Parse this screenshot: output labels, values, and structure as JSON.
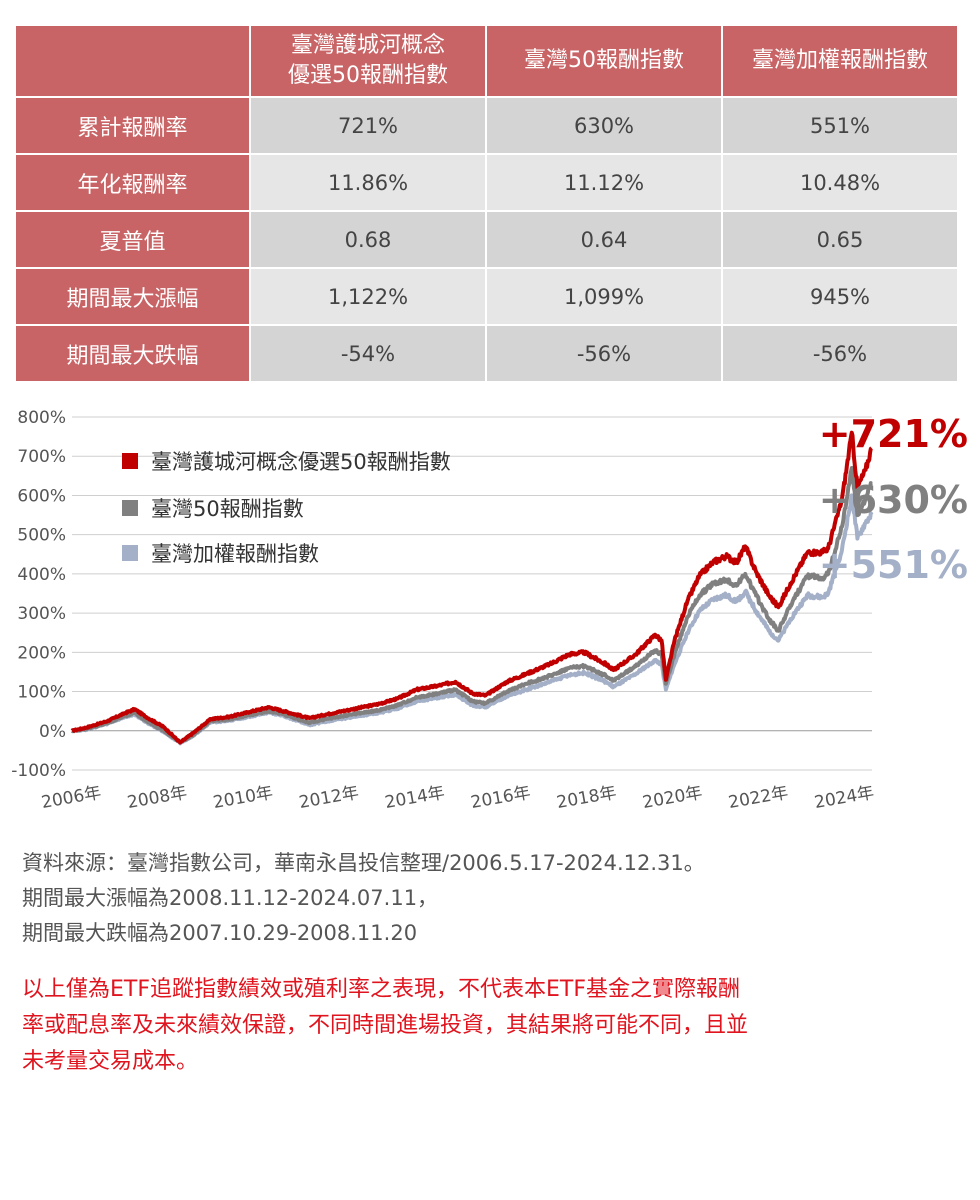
{
  "table": {
    "corner": "",
    "columns": [
      "臺灣護城河概念\n優選50報酬指數",
      "臺灣50報酬指數",
      "臺灣加權報酬指數"
    ],
    "rows": [
      {
        "label": "累計報酬率",
        "values": [
          "721%",
          "630%",
          "551%"
        ]
      },
      {
        "label": "年化報酬率",
        "values": [
          "11.86%",
          "11.12%",
          "10.48%"
        ]
      },
      {
        "label": "夏普值",
        "values": [
          "0.68",
          "0.64",
          "0.65"
        ]
      },
      {
        "label": "期間最大漲幅",
        "values": [
          "1,122%",
          "1,099%",
          "945%"
        ]
      },
      {
        "label": "期間最大跌幅",
        "values": [
          "-54%",
          "-56%",
          "-56%"
        ]
      }
    ]
  },
  "chart_data": {
    "type": "line",
    "title": "",
    "xlabel": "",
    "ylabel": "",
    "x_ticks": [
      "2006年",
      "2008年",
      "2010年",
      "2012年",
      "2014年",
      "2016年",
      "2018年",
      "2020年",
      "2022年",
      "2024年"
    ],
    "y_ticks": [
      "800%",
      "700%",
      "600%",
      "500%",
      "400%",
      "300%",
      "200%",
      "100%",
      "0%",
      "-100%"
    ],
    "ylim": [
      -100,
      800
    ],
    "xlim": [
      2006.37,
      2025.0
    ],
    "grid": true,
    "legend_position": "top-left",
    "series": [
      {
        "name": "臺灣護城河概念優選50報酬指數",
        "color": "#c00000",
        "end_label": "+721%",
        "points": [
          [
            2006.37,
            0
          ],
          [
            2006.7,
            8
          ],
          [
            2007.2,
            25
          ],
          [
            2007.6,
            45
          ],
          [
            2007.83,
            55
          ],
          [
            2008.1,
            35
          ],
          [
            2008.5,
            10
          ],
          [
            2008.89,
            -30
          ],
          [
            2009.2,
            -5
          ],
          [
            2009.6,
            30
          ],
          [
            2010.0,
            35
          ],
          [
            2010.5,
            48
          ],
          [
            2010.95,
            60
          ],
          [
            2011.3,
            50
          ],
          [
            2011.9,
            32
          ],
          [
            2012.3,
            42
          ],
          [
            2012.9,
            55
          ],
          [
            2013.5,
            68
          ],
          [
            2013.95,
            82
          ],
          [
            2014.4,
            105
          ],
          [
            2014.9,
            115
          ],
          [
            2015.3,
            125
          ],
          [
            2015.7,
            95
          ],
          [
            2016.0,
            90
          ],
          [
            2016.5,
            125
          ],
          [
            2016.95,
            145
          ],
          [
            2017.5,
            170
          ],
          [
            2017.95,
            195
          ],
          [
            2018.3,
            200
          ],
          [
            2018.8,
            170
          ],
          [
            2018.98,
            155
          ],
          [
            2019.5,
            195
          ],
          [
            2019.95,
            245
          ],
          [
            2020.1,
            230
          ],
          [
            2020.2,
            130
          ],
          [
            2020.4,
            230
          ],
          [
            2020.7,
            330
          ],
          [
            2020.98,
            395
          ],
          [
            2021.3,
            430
          ],
          [
            2021.6,
            445
          ],
          [
            2021.85,
            430
          ],
          [
            2022.05,
            470
          ],
          [
            2022.3,
            405
          ],
          [
            2022.6,
            345
          ],
          [
            2022.82,
            315
          ],
          [
            2023.1,
            375
          ],
          [
            2023.5,
            455
          ],
          [
            2023.85,
            455
          ],
          [
            2023.98,
            465
          ],
          [
            2024.3,
            590
          ],
          [
            2024.53,
            760
          ],
          [
            2024.66,
            620
          ],
          [
            2024.85,
            665
          ],
          [
            2024.99,
            721
          ]
        ]
      },
      {
        "name": "臺灣50報酬指數",
        "color": "#808080",
        "end_label": "+630%",
        "points": [
          [
            2006.37,
            0
          ],
          [
            2006.7,
            5
          ],
          [
            2007.2,
            20
          ],
          [
            2007.6,
            38
          ],
          [
            2007.83,
            45
          ],
          [
            2008.1,
            25
          ],
          [
            2008.5,
            0
          ],
          [
            2008.89,
            -30
          ],
          [
            2009.2,
            -10
          ],
          [
            2009.6,
            25
          ],
          [
            2010.0,
            28
          ],
          [
            2010.5,
            40
          ],
          [
            2010.95,
            50
          ],
          [
            2011.3,
            42
          ],
          [
            2011.9,
            20
          ],
          [
            2012.3,
            30
          ],
          [
            2012.9,
            42
          ],
          [
            2013.5,
            52
          ],
          [
            2013.95,
            65
          ],
          [
            2014.4,
            85
          ],
          [
            2014.9,
            95
          ],
          [
            2015.3,
            105
          ],
          [
            2015.7,
            75
          ],
          [
            2016.0,
            70
          ],
          [
            2016.5,
            100
          ],
          [
            2016.95,
            120
          ],
          [
            2017.5,
            140
          ],
          [
            2017.95,
            160
          ],
          [
            2018.3,
            165
          ],
          [
            2018.8,
            140
          ],
          [
            2018.98,
            128
          ],
          [
            2019.5,
            165
          ],
          [
            2019.95,
            205
          ],
          [
            2020.1,
            195
          ],
          [
            2020.2,
            120
          ],
          [
            2020.4,
            195
          ],
          [
            2020.7,
            290
          ],
          [
            2020.98,
            345
          ],
          [
            2021.3,
            375
          ],
          [
            2021.6,
            385
          ],
          [
            2021.85,
            370
          ],
          [
            2022.05,
            400
          ],
          [
            2022.3,
            345
          ],
          [
            2022.6,
            285
          ],
          [
            2022.82,
            255
          ],
          [
            2023.1,
            320
          ],
          [
            2023.5,
            395
          ],
          [
            2023.85,
            390
          ],
          [
            2023.98,
            400
          ],
          [
            2024.3,
            520
          ],
          [
            2024.53,
            670
          ],
          [
            2024.66,
            550
          ],
          [
            2024.85,
            595
          ],
          [
            2024.99,
            630
          ]
        ]
      },
      {
        "name": "臺灣加權報酬指數",
        "color": "#a4b0c8",
        "end_label": "+551%",
        "points": [
          [
            2006.37,
            0
          ],
          [
            2006.7,
            3
          ],
          [
            2007.2,
            18
          ],
          [
            2007.6,
            35
          ],
          [
            2007.83,
            42
          ],
          [
            2008.1,
            22
          ],
          [
            2008.5,
            -2
          ],
          [
            2008.89,
            -32
          ],
          [
            2009.2,
            -12
          ],
          [
            2009.6,
            22
          ],
          [
            2010.0,
            25
          ],
          [
            2010.5,
            36
          ],
          [
            2010.95,
            47
          ],
          [
            2011.3,
            38
          ],
          [
            2011.9,
            15
          ],
          [
            2012.3,
            24
          ],
          [
            2012.9,
            35
          ],
          [
            2013.5,
            45
          ],
          [
            2013.95,
            57
          ],
          [
            2014.4,
            75
          ],
          [
            2014.9,
            85
          ],
          [
            2015.3,
            92
          ],
          [
            2015.7,
            65
          ],
          [
            2016.0,
            60
          ],
          [
            2016.5,
            88
          ],
          [
            2016.95,
            105
          ],
          [
            2017.5,
            125
          ],
          [
            2017.95,
            142
          ],
          [
            2018.3,
            148
          ],
          [
            2018.8,
            125
          ],
          [
            2018.98,
            112
          ],
          [
            2019.5,
            145
          ],
          [
            2019.95,
            180
          ],
          [
            2020.1,
            170
          ],
          [
            2020.2,
            105
          ],
          [
            2020.4,
            170
          ],
          [
            2020.7,
            250
          ],
          [
            2020.98,
            305
          ],
          [
            2021.3,
            335
          ],
          [
            2021.6,
            345
          ],
          [
            2021.85,
            330
          ],
          [
            2022.05,
            355
          ],
          [
            2022.3,
            305
          ],
          [
            2022.6,
            255
          ],
          [
            2022.82,
            230
          ],
          [
            2023.1,
            285
          ],
          [
            2023.5,
            345
          ],
          [
            2023.85,
            340
          ],
          [
            2023.98,
            350
          ],
          [
            2024.3,
            460
          ],
          [
            2024.53,
            600
          ],
          [
            2024.66,
            490
          ],
          [
            2024.85,
            530
          ],
          [
            2024.99,
            551
          ]
        ]
      }
    ]
  },
  "notes": {
    "source": "資料來源：臺灣指數公司，華南永昌投信整理/2006.5.17-2024.12.31。",
    "max_rise": "期間最大漲幅為2008.11.12-2024.07.11，",
    "max_drop": "期間最大跌幅為2007.10.29-2008.11.20"
  },
  "disclaimer": {
    "line1": "以上僅為ETF追蹤指數績效或殖利率之表現，不代表本ETF基金之實際報酬",
    "line2": "率或配息率及未來績效保證，不同時間進場投資，其結果將可能不同，且並",
    "line3": "未考量交易成本。"
  }
}
